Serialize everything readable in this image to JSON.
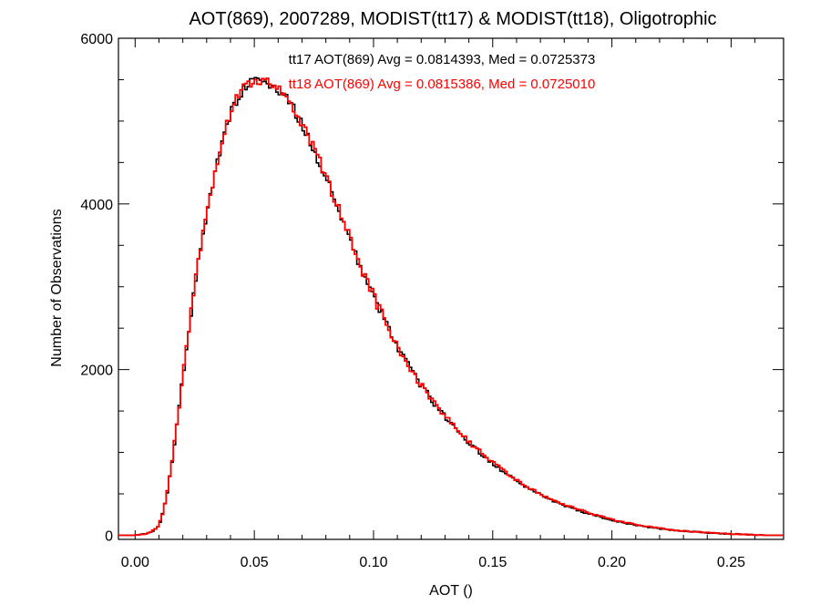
{
  "chart_data": {
    "type": "line",
    "title": "AOT(869), 2007289, MODIST(tt17) & MODIST(tt18), Oligotrophic",
    "xlabel": "AOT ()",
    "ylabel": "Number of Observations",
    "xlim": [
      -0.007,
      0.272
    ],
    "ylim": [
      -50,
      6000
    ],
    "x_ticks": [
      {
        "value": 0.0,
        "label": "0.00"
      },
      {
        "value": 0.05,
        "label": "0.05"
      },
      {
        "value": 0.1,
        "label": "0.10"
      },
      {
        "value": 0.15,
        "label": "0.15"
      },
      {
        "value": 0.2,
        "label": "0.20"
      },
      {
        "value": 0.25,
        "label": "0.25"
      }
    ],
    "y_ticks": [
      {
        "value": 0,
        "label": "0"
      },
      {
        "value": 2000,
        "label": "2000"
      },
      {
        "value": 4000,
        "label": "4000"
      },
      {
        "value": 6000,
        "label": "6000"
      }
    ],
    "grid": false,
    "annotations": [
      {
        "text": "tt17 AOT(869) Avg = 0.0814393, Med = 0.0725373",
        "color": "#000000"
      },
      {
        "text": "tt18 AOT(869) Avg = 0.0815386, Med = 0.0725010",
        "color": "#ff0000"
      }
    ],
    "x": [
      -0.007,
      0.0,
      0.005,
      0.008,
      0.01,
      0.012,
      0.014,
      0.016,
      0.018,
      0.02,
      0.022,
      0.024,
      0.026,
      0.028,
      0.03,
      0.032,
      0.034,
      0.036,
      0.038,
      0.04,
      0.042,
      0.044,
      0.046,
      0.048,
      0.05,
      0.052,
      0.054,
      0.056,
      0.058,
      0.06,
      0.062,
      0.064,
      0.066,
      0.068,
      0.07,
      0.072,
      0.075,
      0.078,
      0.08,
      0.082,
      0.085,
      0.088,
      0.09,
      0.092,
      0.095,
      0.098,
      0.1,
      0.102,
      0.105,
      0.108,
      0.11,
      0.112,
      0.115,
      0.118,
      0.12,
      0.122,
      0.125,
      0.128,
      0.13,
      0.135,
      0.14,
      0.145,
      0.15,
      0.155,
      0.16,
      0.165,
      0.17,
      0.175,
      0.18,
      0.185,
      0.19,
      0.195,
      0.2,
      0.205,
      0.21,
      0.215,
      0.22,
      0.225,
      0.23,
      0.235,
      0.24,
      0.245,
      0.25,
      0.255,
      0.26,
      0.265,
      0.272
    ],
    "series": [
      {
        "name": "tt17",
        "color": "#000000",
        "values": [
          0,
          0,
          20,
          60,
          120,
          300,
          600,
          1000,
          1450,
          1900,
          2350,
          2800,
          3200,
          3550,
          3850,
          4150,
          4420,
          4680,
          4900,
          5080,
          5220,
          5330,
          5400,
          5450,
          5480,
          5490,
          5480,
          5460,
          5430,
          5390,
          5330,
          5260,
          5170,
          5070,
          4960,
          4840,
          4650,
          4460,
          4320,
          4180,
          3960,
          3740,
          3580,
          3430,
          3210,
          3000,
          2880,
          2750,
          2570,
          2400,
          2290,
          2180,
          2030,
          1890,
          1810,
          1730,
          1610,
          1500,
          1430,
          1270,
          1120,
          990,
          870,
          760,
          660,
          570,
          490,
          420,
          360,
          310,
          260,
          220,
          180,
          150,
          120,
          100,
          80,
          60,
          50,
          40,
          30,
          20,
          15,
          10,
          5,
          0,
          0
        ]
      },
      {
        "name": "tt18",
        "color": "#ff0000",
        "values": [
          0,
          0,
          22,
          62,
          125,
          305,
          610,
          1010,
          1460,
          1910,
          2360,
          2810,
          3210,
          3560,
          3860,
          4160,
          4430,
          4690,
          4910,
          5090,
          5230,
          5340,
          5410,
          5460,
          5490,
          5500,
          5490,
          5470,
          5440,
          5400,
          5340,
          5270,
          5180,
          5080,
          4970,
          4850,
          4660,
          4470,
          4330,
          4190,
          3970,
          3750,
          3590,
          3440,
          3220,
          3010,
          2890,
          2760,
          2580,
          2410,
          2300,
          2190,
          2040,
          1900,
          1820,
          1740,
          1620,
          1510,
          1440,
          1280,
          1130,
          1000,
          880,
          770,
          670,
          580,
          500,
          430,
          370,
          320,
          270,
          230,
          190,
          160,
          130,
          105,
          85,
          65,
          52,
          42,
          32,
          22,
          16,
          11,
          6,
          0,
          0
        ]
      }
    ]
  }
}
